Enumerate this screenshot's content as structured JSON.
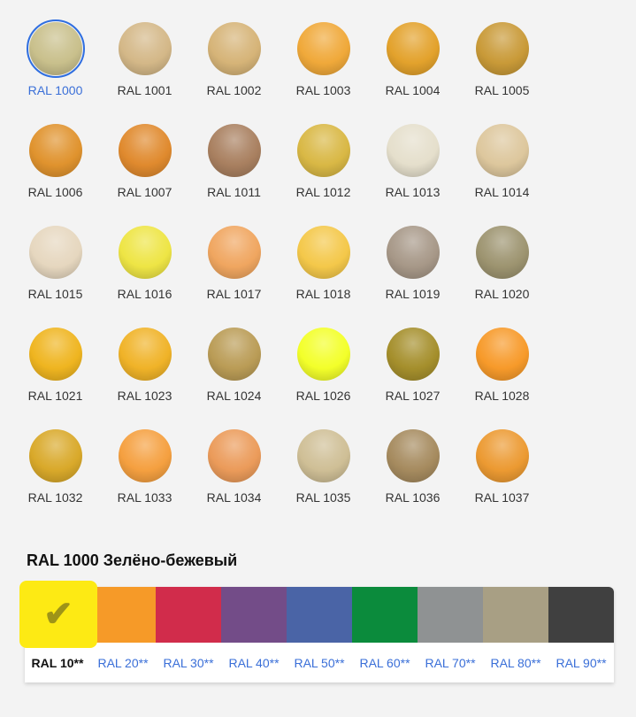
{
  "colors": [
    {
      "label": "RAL 1000",
      "hex": "#c9c08c",
      "selected": true
    },
    {
      "label": "RAL 1001",
      "hex": "#d4b888"
    },
    {
      "label": "RAL 1002",
      "hex": "#d6b478"
    },
    {
      "label": "RAL 1003",
      "hex": "#f0a93a"
    },
    {
      "label": "RAL 1004",
      "hex": "#e3a22c"
    },
    {
      "label": "RAL 1005",
      "hex": "#c99a38"
    },
    {
      "label": "RAL 1006",
      "hex": "#e0932e"
    },
    {
      "label": "RAL 1007",
      "hex": "#e08a2e"
    },
    {
      "label": "RAL 1011",
      "hex": "#a98060"
    },
    {
      "label": "RAL 1012",
      "hex": "#d9b845"
    },
    {
      "label": "RAL 1013",
      "hex": "#e5dfcc"
    },
    {
      "label": "RAL 1014",
      "hex": "#ddc79d"
    },
    {
      "label": "RAL 1015",
      "hex": "#e6d7bf"
    },
    {
      "label": "RAL 1016",
      "hex": "#eee545"
    },
    {
      "label": "RAL 1017",
      "hex": "#f0a660"
    },
    {
      "label": "RAL 1018",
      "hex": "#f4c84a"
    },
    {
      "label": "RAL 1019",
      "hex": "#a79888"
    },
    {
      "label": "RAL 1020",
      "hex": "#9d9470"
    },
    {
      "label": "RAL 1021",
      "hex": "#efb520"
    },
    {
      "label": "RAL 1023",
      "hex": "#f0b328"
    },
    {
      "label": "RAL 1024",
      "hex": "#ba9c56"
    },
    {
      "label": "RAL 1026",
      "hex": "#f3ff2a"
    },
    {
      "label": "RAL 1027",
      "hex": "#a58f2c"
    },
    {
      "label": "RAL 1028",
      "hex": "#f79a2a"
    },
    {
      "label": "RAL 1032",
      "hex": "#d9a92a"
    },
    {
      "label": "RAL 1033",
      "hex": "#f5a040"
    },
    {
      "label": "RAL 1034",
      "hex": "#eb9b5a"
    },
    {
      "label": "RAL 1035",
      "hex": "#cfbf96"
    },
    {
      "label": "RAL 1036",
      "hex": "#a68b5f"
    },
    {
      "label": "RAL 1037",
      "hex": "#ec9a32"
    }
  ],
  "selected_title": "RAL 1000 Зелёно-бежевый",
  "groups": [
    {
      "label": "RAL 10**",
      "hex": "#fdea14",
      "selected": true
    },
    {
      "label": "RAL 20**",
      "hex": "#f69a28"
    },
    {
      "label": "RAL 30**",
      "hex": "#d12c4b"
    },
    {
      "label": "RAL 40**",
      "hex": "#734c88"
    },
    {
      "label": "RAL 50**",
      "hex": "#4a64a6"
    },
    {
      "label": "RAL 60**",
      "hex": "#0b8b3c"
    },
    {
      "label": "RAL 70**",
      "hex": "#8f9293"
    },
    {
      "label": "RAL 80**",
      "hex": "#a89f84"
    },
    {
      "label": "RAL 90**",
      "hex": "#404040"
    }
  ],
  "check_icon": "✔",
  "accent": "#3a6fd8"
}
